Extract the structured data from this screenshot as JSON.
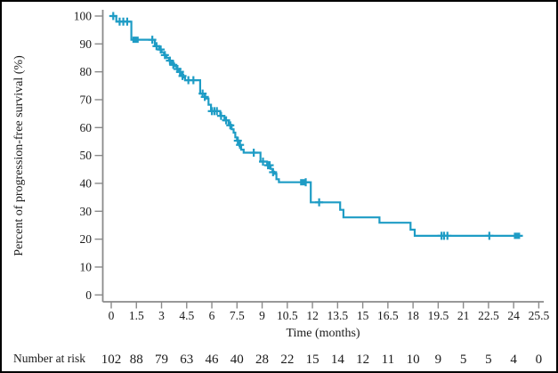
{
  "figure": {
    "kind": "Kaplan-Meier survival curve",
    "background": "#ffffff",
    "frame_border_color": "#000000"
  },
  "chart_data": {
    "type": "line",
    "subtype": "kaplan-meier-step",
    "title": "",
    "xlabel": "Time (months)",
    "ylabel": "Percent of progression-free survival (%)",
    "xlim": [
      0,
      25.5
    ],
    "ylim": [
      0,
      100
    ],
    "grid": false,
    "legend": "none",
    "line_color": "#1e9cc5",
    "axis_color": "#8a8a8a",
    "text_color": "#1a1a1a",
    "x_ticks": [
      0,
      1.5,
      3,
      4.5,
      6,
      7.5,
      9,
      10.5,
      12,
      13.5,
      15,
      16.5,
      18,
      19.5,
      21,
      22.5,
      24,
      25.5
    ],
    "x_tick_labels": [
      "0",
      "1.5",
      "3",
      "4.5",
      "6",
      "7.5",
      "9",
      "10.5",
      "12",
      "13.5",
      "15",
      "16.5",
      "18",
      "19.5",
      "21",
      "22.5",
      "24",
      "25.5"
    ],
    "y_ticks": [
      0,
      10,
      20,
      30,
      40,
      50,
      60,
      70,
      80,
      90,
      100
    ],
    "y_tick_labels": [
      "0",
      "10",
      "20",
      "30",
      "40",
      "50",
      "60",
      "70",
      "80",
      "90",
      "100"
    ],
    "series": [
      {
        "name": "Progression-free survival",
        "steps": [
          [
            0,
            100
          ],
          [
            0.3,
            98
          ],
          [
            1.2,
            91.5
          ],
          [
            2.6,
            89.2
          ],
          [
            2.85,
            88
          ],
          [
            3.0,
            87
          ],
          [
            3.15,
            86
          ],
          [
            3.3,
            85
          ],
          [
            3.45,
            84
          ],
          [
            3.6,
            83
          ],
          [
            3.75,
            82
          ],
          [
            3.9,
            81
          ],
          [
            4.05,
            80
          ],
          [
            4.15,
            79
          ],
          [
            4.3,
            78
          ],
          [
            4.4,
            77
          ],
          [
            5.3,
            72.2
          ],
          [
            5.6,
            70.4
          ],
          [
            5.8,
            68.2
          ],
          [
            5.95,
            65.9
          ],
          [
            6.5,
            64.2
          ],
          [
            6.75,
            62.6
          ],
          [
            7.0,
            61
          ],
          [
            7.18,
            59.4
          ],
          [
            7.3,
            58.2
          ],
          [
            7.4,
            56.5
          ],
          [
            7.5,
            55.3
          ],
          [
            7.65,
            53.4
          ],
          [
            7.75,
            52.1
          ],
          [
            7.9,
            51
          ],
          [
            8.9,
            47.8
          ],
          [
            9.3,
            46.5
          ],
          [
            9.5,
            45.2
          ],
          [
            9.62,
            44.2
          ],
          [
            9.72,
            43.4
          ],
          [
            9.85,
            41.5
          ],
          [
            10.0,
            40.4
          ],
          [
            11.9,
            33.2
          ],
          [
            13.65,
            30.5
          ],
          [
            13.85,
            27.8
          ],
          [
            16.0,
            25.9
          ],
          [
            17.85,
            23.4
          ],
          [
            18.1,
            21.2
          ]
        ],
        "end_month": 24.55,
        "censor_plus": [
          [
            0.12,
            100
          ],
          [
            0.5,
            98
          ],
          [
            0.72,
            98
          ],
          [
            0.95,
            98
          ],
          [
            2.45,
            91.5
          ],
          [
            2.7,
            89.2
          ],
          [
            2.95,
            88
          ],
          [
            3.2,
            86
          ],
          [
            3.5,
            84
          ],
          [
            3.7,
            82.5
          ],
          [
            3.95,
            81
          ],
          [
            4.1,
            80
          ],
          [
            4.25,
            78.5
          ],
          [
            4.6,
            77
          ],
          [
            4.9,
            77
          ],
          [
            5.45,
            72.2
          ],
          [
            5.58,
            71
          ],
          [
            6.0,
            65.9
          ],
          [
            6.15,
            65.9
          ],
          [
            6.3,
            65.9
          ],
          [
            6.55,
            64.2
          ],
          [
            6.85,
            62.6
          ],
          [
            7.1,
            60.8
          ],
          [
            7.55,
            55.3
          ],
          [
            7.68,
            53.8
          ],
          [
            8.5,
            51
          ],
          [
            9.05,
            47.8
          ],
          [
            9.35,
            46.5
          ],
          [
            9.45,
            46.5
          ],
          [
            9.65,
            44
          ],
          [
            11.6,
            40.4
          ],
          [
            12.4,
            33.2
          ],
          [
            19.7,
            21.2
          ],
          [
            19.85,
            21.2
          ],
          [
            20.05,
            21.2
          ],
          [
            22.55,
            21.2
          ]
        ],
        "censor_square": [
          [
            1.45,
            91.5
          ],
          [
            11.45,
            40.4
          ],
          [
            24.2,
            21.2
          ]
        ]
      }
    ],
    "number_at_risk": {
      "label": "Number at risk",
      "times": [
        0,
        1.5,
        3,
        4.5,
        6,
        7.5,
        9,
        10.5,
        12,
        13.5,
        15,
        16.5,
        18,
        19.5,
        21,
        22.5,
        24,
        25.5
      ],
      "counts": [
        "102",
        "88",
        "79",
        "63",
        "46",
        "40",
        "28",
        "22",
        "15",
        "14",
        "12",
        "11",
        "10",
        "9",
        "5",
        "5",
        "4",
        "0"
      ]
    }
  }
}
